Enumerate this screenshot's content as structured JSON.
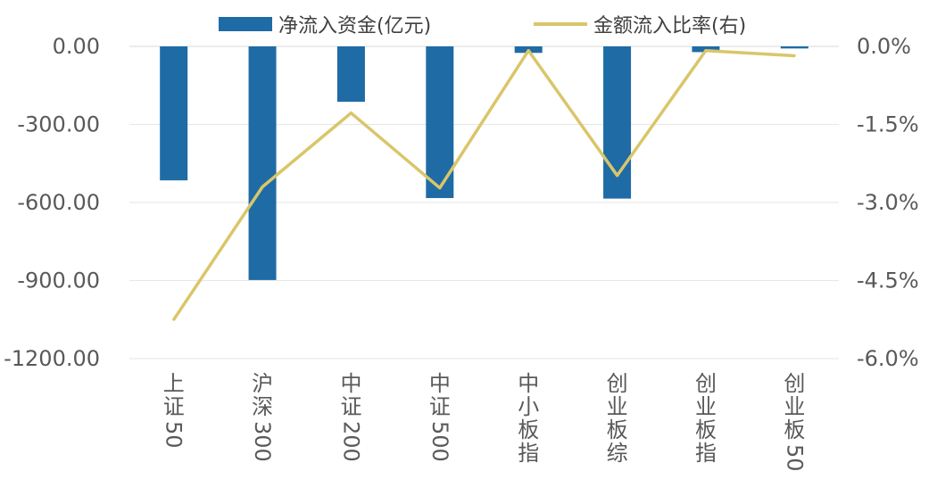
{
  "chart_data": {
    "type": "bar+line",
    "categories": [
      [
        "上",
        "证",
        "50"
      ],
      [
        "沪",
        "深",
        "300"
      ],
      [
        "中",
        "证",
        "200"
      ],
      [
        "中",
        "证",
        "500"
      ],
      [
        "中",
        "小",
        "板",
        "指"
      ],
      [
        "创",
        "业",
        "板",
        "综"
      ],
      [
        "创",
        "业",
        "板",
        "指"
      ],
      [
        "创",
        "业",
        "板",
        "50"
      ]
    ],
    "series": [
      {
        "name": "净流入资金(亿元)",
        "type": "bar",
        "axis": "left",
        "color": "#1F6BA5",
        "values": [
          -515,
          -898,
          -213,
          -583,
          -25,
          -585,
          -22,
          -8
        ]
      },
      {
        "name": "金额流入比率(右)",
        "type": "line",
        "axis": "right",
        "color": "#D9C66A",
        "values": [
          -5.25,
          -2.7,
          -1.28,
          -2.72,
          -0.08,
          -2.48,
          -0.08,
          -0.18
        ]
      }
    ],
    "left_axis": {
      "ylim": [
        -1200,
        0
      ],
      "ticks": [
        0,
        -300,
        -600,
        -900,
        -1200
      ],
      "tick_labels": [
        "0.00",
        "-300.00",
        "-600.00",
        "-900.00",
        "-1200.00"
      ]
    },
    "right_axis": {
      "ylim": [
        -6,
        0
      ],
      "ticks": [
        0,
        -1.5,
        -3,
        -4.5,
        -6
      ],
      "tick_labels": [
        "0.0%",
        "-1.5%",
        "-3.0%",
        "-4.5%",
        "-6.0%"
      ]
    },
    "grid": true,
    "legend_position": "top"
  }
}
